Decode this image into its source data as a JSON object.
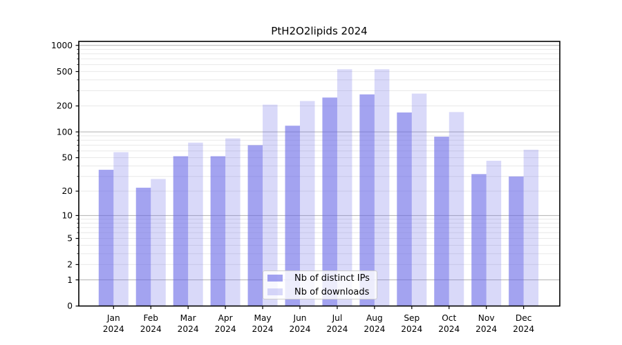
{
  "figure": {
    "title": "PtH2O2lipids 2024"
  },
  "chart_data": {
    "type": "bar",
    "title": "PtH2O2lipids 2024",
    "categories": [
      "Jan 2024",
      "Feb 2024",
      "Mar 2024",
      "Apr 2024",
      "May 2024",
      "Jun 2024",
      "Jul 2024",
      "Aug 2024",
      "Sep 2024",
      "Oct 2024",
      "Nov 2024",
      "Dec 2024"
    ],
    "series": [
      {
        "name": "Nb of distinct IPs",
        "color": "rgba(102,102,230,0.60)",
        "color_on_white": "#a8a8f0",
        "values": [
          36,
          22,
          52,
          52,
          70,
          118,
          250,
          272,
          168,
          88,
          32,
          30
        ]
      },
      {
        "name": "Nb of downloads",
        "color": "rgba(102,102,230,0.25)",
        "color_on_white": "#d9d9f8",
        "values": [
          58,
          28,
          75,
          84,
          207,
          228,
          530,
          530,
          278,
          170,
          46,
          62
        ]
      }
    ],
    "xlabel": "",
    "ylabel": "",
    "yscale": "log1p",
    "ylim": [
      0,
      1112
    ],
    "y_ticks": [
      0,
      1,
      2,
      5,
      10,
      20,
      50,
      100,
      200,
      500,
      1000
    ],
    "grid": {
      "enabled": true,
      "major_values": [
        1,
        10,
        100,
        1000
      ],
      "minor_values": [
        2,
        3,
        4,
        5,
        6,
        7,
        8,
        9,
        20,
        30,
        40,
        50,
        60,
        70,
        80,
        90,
        200,
        300,
        400,
        500,
        600,
        700,
        800,
        900
      ],
      "major_color": "#b0b0b0",
      "minor_color": "#e8e8e8"
    },
    "legend": {
      "position": "lower center",
      "labels": [
        "Nb of distinct IPs",
        "Nb of downloads"
      ]
    },
    "axis_color": "#000000",
    "background_color": "#ffffff"
  }
}
